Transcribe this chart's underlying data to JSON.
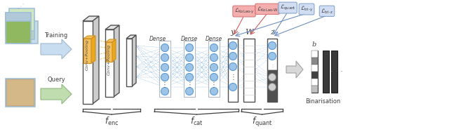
{
  "bg_color": "#ffffff",
  "fig_w": 6.4,
  "fig_h": 1.98,
  "colors": {
    "blue_arrow": "#a8c8e8",
    "green_arrow": "#a8d8a0",
    "node_fill": "#9dc3e6",
    "node_edge": "#5b9bd5",
    "conv_orange": "#f0b040",
    "net_edge": "#404040",
    "net_edge_light": "#888888",
    "dashed_line": "#5b9bd5",
    "loss_red": "#f4a0a0",
    "loss_blue": "#b8cfe8",
    "quant_dark": "#505050",
    "quant_med": "#909090",
    "quant_light": "#d0d0d0",
    "brace_color": "#404040"
  },
  "labels": {
    "training": "Training",
    "query": "Query",
    "conv1": "Conv+Pooling",
    "conv2": "Conv+Pooling",
    "dense": "Dense",
    "y_label": "y",
    "w_label": "W",
    "z_label": "z",
    "b_label": "b",
    "binarisation": "Binarisation",
    "f_enc": "$f_\\mathrm{enc}$",
    "f_cat": "$f_\\mathrm{cat}$",
    "f_quant": "$f_\\mathrm{quant}$",
    "L_KoLeo_y": "$\\mathcal{L}_{\\mathrm{KoLeo\\text{-}y}}$",
    "L_KoLeo_W": "$\\mathcal{L}_{\\mathrm{KoLeo\\text{-}W}}$",
    "L_quant": "$\\mathcal{L}_{\\mathrm{quant}}$",
    "L_tri_y": "$\\mathcal{L}_{\\mathrm{tri\\text{-}y}}$",
    "L_tri_z": "$\\mathcal{L}_{\\mathrm{tri\\text{-}z}}$"
  }
}
